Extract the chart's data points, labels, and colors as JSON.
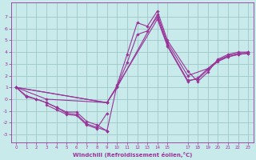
{
  "background_color": "#c8eaea",
  "grid_color": "#a0c8c8",
  "line_color": "#993399",
  "xlabel": "Windchill (Refroidissement éolien,°C)",
  "xlim": [
    -0.5,
    23.5
  ],
  "ylim": [
    -3.7,
    8.2
  ],
  "yticks": [
    -3,
    -2,
    -1,
    0,
    1,
    2,
    3,
    4,
    5,
    6,
    7
  ],
  "xticks": [
    0,
    1,
    2,
    3,
    4,
    5,
    6,
    7,
    8,
    9,
    10,
    11,
    12,
    13,
    14,
    15,
    17,
    18,
    19,
    20,
    21,
    22,
    23
  ],
  "lines": [
    {
      "x": [
        0,
        1,
        2,
        3,
        4,
        5,
        6,
        7,
        8,
        9,
        10,
        11,
        12,
        13,
        14,
        15,
        17,
        18,
        19,
        20,
        21,
        22,
        23
      ],
      "y": [
        1,
        0.3,
        0,
        -0.3,
        -0.7,
        -1.2,
        -1.3,
        -2.1,
        -2.4,
        -2.7,
        1.2,
        3.8,
        6.5,
        6.2,
        7.5,
        5.0,
        2.4,
        1.5,
        2.3,
        3.4,
        3.8,
        4.0,
        4.0
      ]
    },
    {
      "x": [
        0,
        3,
        9,
        10,
        11,
        12,
        13,
        14,
        15,
        17,
        18,
        19,
        20,
        21,
        22,
        23
      ],
      "y": [
        1,
        0,
        -0.3,
        1.1,
        3.1,
        5.5,
        5.8,
        7.0,
        4.6,
        1.6,
        1.7,
        2.5,
        3.2,
        3.6,
        3.8,
        3.9
      ]
    },
    {
      "x": [
        0,
        9,
        10,
        14,
        15,
        17,
        18,
        19,
        20,
        21,
        22,
        23
      ],
      "y": [
        1,
        -0.3,
        1.1,
        6.8,
        4.5,
        1.5,
        1.8,
        2.6,
        3.3,
        3.6,
        3.8,
        3.9
      ]
    },
    {
      "x": [
        0,
        9,
        10,
        14,
        15,
        17,
        19,
        20,
        21,
        22,
        23
      ],
      "y": [
        1,
        -0.3,
        1.0,
        7.2,
        4.8,
        2.0,
        2.6,
        3.3,
        3.7,
        3.9,
        4.0
      ]
    },
    {
      "x": [
        0,
        1,
        2,
        3,
        4,
        5,
        6,
        7,
        8,
        9
      ],
      "y": [
        1,
        0.2,
        0,
        -0.3,
        -0.7,
        -1.1,
        -1.1,
        -1.9,
        -2.2,
        -2.7
      ]
    },
    {
      "x": [
        3,
        4,
        5,
        6,
        7,
        8,
        9
      ],
      "y": [
        -0.5,
        -0.9,
        -1.3,
        -1.4,
        -2.2,
        -2.5,
        -1.2
      ]
    }
  ]
}
